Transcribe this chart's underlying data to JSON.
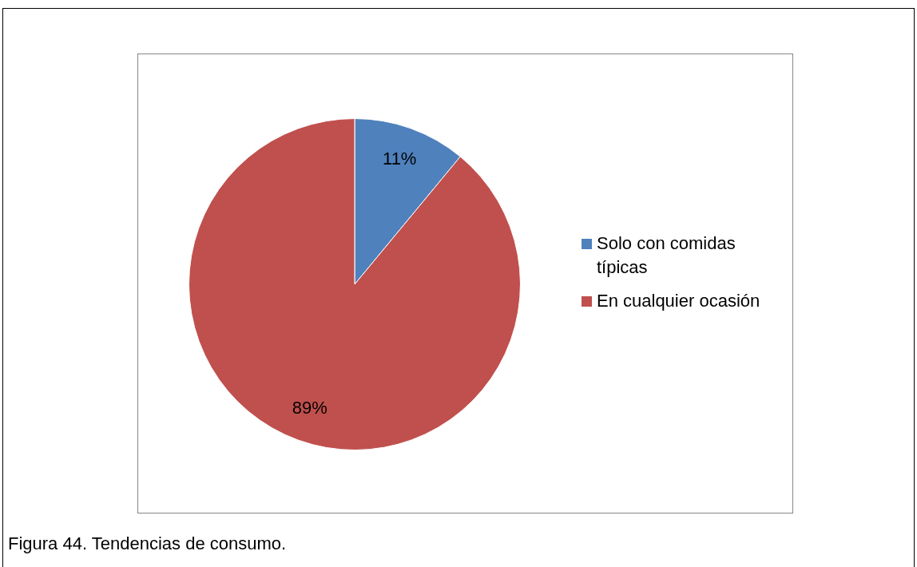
{
  "chart_data": {
    "type": "pie",
    "categories": [
      "Solo con comidas típicas",
      "En cualquier ocasión"
    ],
    "values": [
      11,
      89
    ],
    "colors": [
      "#4f81bd",
      "#c0504d"
    ],
    "value_labels": [
      "11%",
      "89%"
    ],
    "legend": "right",
    "annotations": [
      "Figura 44. Tendencias de consumo."
    ]
  }
}
